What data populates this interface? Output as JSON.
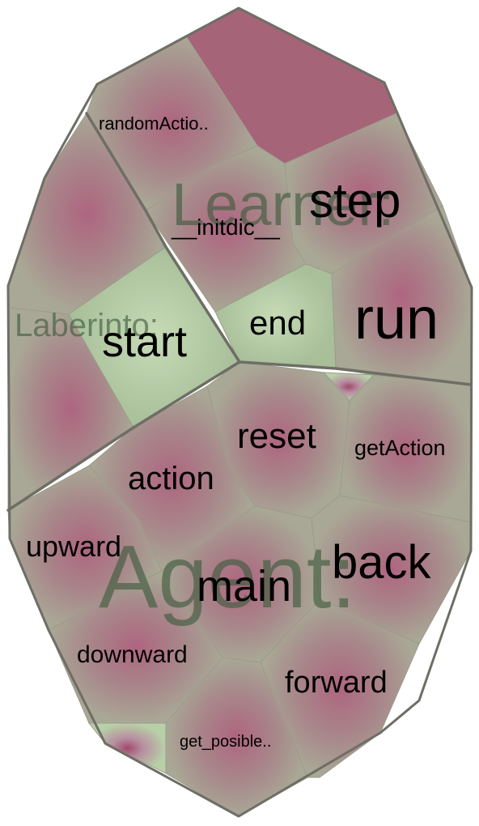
{
  "packages": [
    {
      "id": "learner",
      "name": "Learner:"
    },
    {
      "id": "laberinto",
      "name": "Laberinto:"
    },
    {
      "id": "agent",
      "name": "Agent:"
    }
  ],
  "methods": {
    "randomaction": "randomActio..",
    "initdic": "__initdic__",
    "step": "step",
    "run": "run",
    "start": "start",
    "end": "end",
    "reset": "reset",
    "getaction": "getAction",
    "action": "action",
    "upward": "upward",
    "back": "back",
    "main": "main",
    "downward": "downward",
    "forward": "forward",
    "get_posible": "get_posible.."
  },
  "colors": {
    "neutral": "#a9a896",
    "hot": "#a86078",
    "cool": "#b6cca6",
    "border": "#6e6e66"
  }
}
